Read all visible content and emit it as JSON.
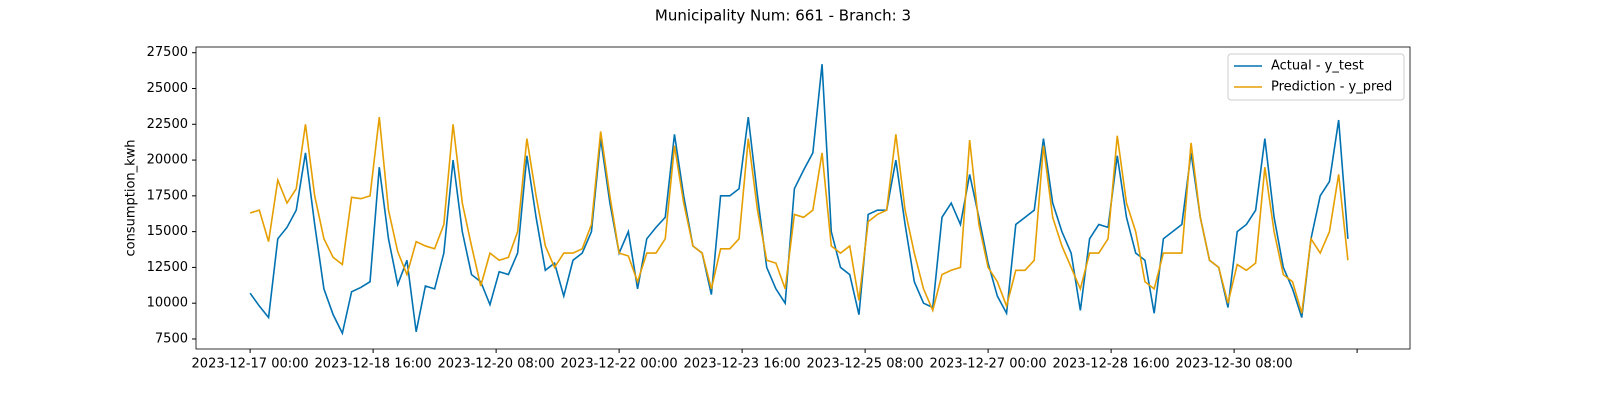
{
  "chart_data": {
    "type": "line",
    "title": "Municipality Num: 661 - Branch: 3",
    "ylabel": "consumption_kwh",
    "x": [
      "2023-12-17 00:00",
      "2023-12-17 03:00",
      "2023-12-17 06:00",
      "2023-12-17 09:00",
      "2023-12-17 12:00",
      "2023-12-17 15:00",
      "2023-12-17 18:00",
      "2023-12-17 21:00",
      "2023-12-18 00:00",
      "2023-12-18 03:00",
      "2023-12-18 06:00",
      "2023-12-18 09:00",
      "2023-12-18 12:00",
      "2023-12-18 15:00",
      "2023-12-18 18:00",
      "2023-12-18 21:00",
      "2023-12-19 00:00",
      "2023-12-19 03:00",
      "2023-12-19 06:00",
      "2023-12-19 09:00",
      "2023-12-19 12:00",
      "2023-12-19 15:00",
      "2023-12-19 18:00",
      "2023-12-19 21:00",
      "2023-12-20 00:00",
      "2023-12-20 03:00",
      "2023-12-20 06:00",
      "2023-12-20 09:00",
      "2023-12-20 12:00",
      "2023-12-20 15:00",
      "2023-12-20 18:00",
      "2023-12-20 21:00",
      "2023-12-21 00:00",
      "2023-12-21 03:00",
      "2023-12-21 06:00",
      "2023-12-21 09:00",
      "2023-12-21 12:00",
      "2023-12-21 15:00",
      "2023-12-21 18:00",
      "2023-12-21 21:00",
      "2023-12-22 00:00",
      "2023-12-22 03:00",
      "2023-12-22 06:00",
      "2023-12-22 09:00",
      "2023-12-22 12:00",
      "2023-12-22 15:00",
      "2023-12-22 18:00",
      "2023-12-22 21:00",
      "2023-12-23 00:00",
      "2023-12-23 03:00",
      "2023-12-23 06:00",
      "2023-12-23 09:00",
      "2023-12-23 12:00",
      "2023-12-23 15:00",
      "2023-12-23 18:00",
      "2023-12-23 21:00",
      "2023-12-24 00:00",
      "2023-12-24 03:00",
      "2023-12-24 06:00",
      "2023-12-24 09:00",
      "2023-12-24 12:00",
      "2023-12-24 15:00",
      "2023-12-24 18:00",
      "2023-12-24 21:00",
      "2023-12-25 00:00",
      "2023-12-25 03:00",
      "2023-12-25 06:00",
      "2023-12-25 09:00",
      "2023-12-25 12:00",
      "2023-12-25 15:00",
      "2023-12-25 18:00",
      "2023-12-25 21:00",
      "2023-12-26 00:00",
      "2023-12-26 03:00",
      "2023-12-26 06:00",
      "2023-12-26 09:00",
      "2023-12-26 12:00",
      "2023-12-26 15:00",
      "2023-12-26 18:00",
      "2023-12-26 21:00",
      "2023-12-27 00:00",
      "2023-12-27 03:00",
      "2023-12-27 06:00",
      "2023-12-27 09:00",
      "2023-12-27 12:00",
      "2023-12-27 15:00",
      "2023-12-27 18:00",
      "2023-12-27 21:00",
      "2023-12-28 00:00",
      "2023-12-28 03:00",
      "2023-12-28 06:00",
      "2023-12-28 09:00",
      "2023-12-28 12:00",
      "2023-12-28 15:00",
      "2023-12-28 18:00",
      "2023-12-28 21:00",
      "2023-12-29 00:00",
      "2023-12-29 03:00",
      "2023-12-29 06:00",
      "2023-12-29 09:00",
      "2023-12-29 12:00",
      "2023-12-29 15:00",
      "2023-12-29 18:00",
      "2023-12-29 21:00",
      "2023-12-30 00:00",
      "2023-12-30 03:00",
      "2023-12-30 06:00",
      "2023-12-30 09:00",
      "2023-12-30 12:00",
      "2023-12-30 15:00",
      "2023-12-30 18:00",
      "2023-12-30 21:00",
      "2023-12-31 00:00",
      "2023-12-31 03:00",
      "2023-12-31 06:00",
      "2023-12-31 09:00",
      "2023-12-31 12:00",
      "2023-12-31 15:00",
      "2023-12-31 18:00",
      "2023-12-31 21:00"
    ],
    "series": [
      {
        "name": "Actual - y_test",
        "color": "#0072b2",
        "values": [
          10700,
          9800,
          9000,
          14500,
          15300,
          16500,
          20500,
          15500,
          11000,
          9200,
          7900,
          10800,
          11100,
          11500,
          19500,
          14500,
          11300,
          13000,
          8000,
          11200,
          11000,
          13500,
          20000,
          15000,
          12000,
          11500,
          9900,
          12200,
          12000,
          13500,
          20300,
          16000,
          12300,
          12800,
          10500,
          13000,
          13500,
          15000,
          21500,
          17000,
          13500,
          15000,
          11000,
          14500,
          15300,
          16000,
          21800,
          17500,
          14000,
          13500,
          10600,
          17500,
          17500,
          18000,
          23000,
          17500,
          12500,
          11000,
          10000,
          18000,
          19300,
          20500,
          26700,
          15000,
          12500,
          12000,
          9200,
          16200,
          16500,
          16500,
          20000,
          15500,
          11500,
          10000,
          9700,
          16000,
          17000,
          15500,
          19000,
          16000,
          12800,
          10500,
          9300,
          15500,
          16000,
          16500,
          21500,
          17000,
          15000,
          13500,
          9500,
          14500,
          15500,
          15300,
          20300,
          16000,
          13500,
          13000,
          9300,
          14500,
          15000,
          15500,
          20500,
          16000,
          13000,
          12500,
          9700,
          15000,
          15500,
          16500,
          21500,
          16000,
          12500,
          11000,
          9000,
          14500,
          17500,
          18500,
          22800,
          14500
        ]
      },
      {
        "name": "Prediction - y_pred",
        "color": "#e69f00",
        "values": [
          16300,
          16500,
          14300,
          18600,
          17000,
          18000,
          22500,
          17500,
          14500,
          13200,
          12700,
          17400,
          17300,
          17500,
          23000,
          16500,
          13600,
          12000,
          14300,
          14000,
          13800,
          15500,
          22500,
          17000,
          14000,
          11200,
          13500,
          13000,
          13200,
          15000,
          21500,
          17500,
          14000,
          12500,
          13500,
          13500,
          13800,
          15500,
          22000,
          17500,
          13500,
          13300,
          11500,
          13500,
          13500,
          14500,
          21000,
          17000,
          14000,
          13500,
          11000,
          13800,
          13800,
          14500,
          21500,
          16500,
          13000,
          12800,
          11000,
          16200,
          16000,
          16500,
          20500,
          14000,
          13500,
          14000,
          10200,
          15700,
          16200,
          16500,
          21800,
          16500,
          13500,
          11000,
          9500,
          12000,
          12300,
          12500,
          21400,
          15500,
          12500,
          11500,
          9800,
          12300,
          12300,
          13000,
          21000,
          16000,
          14000,
          12500,
          11000,
          13500,
          13500,
          14500,
          21700,
          17000,
          15000,
          11500,
          11000,
          13500,
          13500,
          13500,
          21200,
          16000,
          13000,
          12500,
          10000,
          12700,
          12300,
          12800,
          19500,
          15000,
          12000,
          11500,
          9300,
          14500,
          13500,
          15000,
          19000,
          13000
        ]
      }
    ],
    "xlim": [
      "2023-12-16 06:24",
      "2024-01-01 17:12"
    ],
    "xticks": [
      "2023-12-17 00:00",
      "2023-12-18 16:00",
      "2023-12-20 08:00",
      "2023-12-22 00:00",
      "2023-12-23 16:00",
      "2023-12-25 08:00",
      "2023-12-27 00:00",
      "2023-12-28 16:00",
      "2023-12-30 08:00",
      {
        "value": "2024-01-01 00:00",
        "label": null
      }
    ],
    "ylim": [
      6800,
      27900
    ],
    "yticks": [
      7500,
      10000,
      12500,
      15000,
      17500,
      20000,
      22500,
      25000,
      27500
    ],
    "legend": "upper right"
  }
}
